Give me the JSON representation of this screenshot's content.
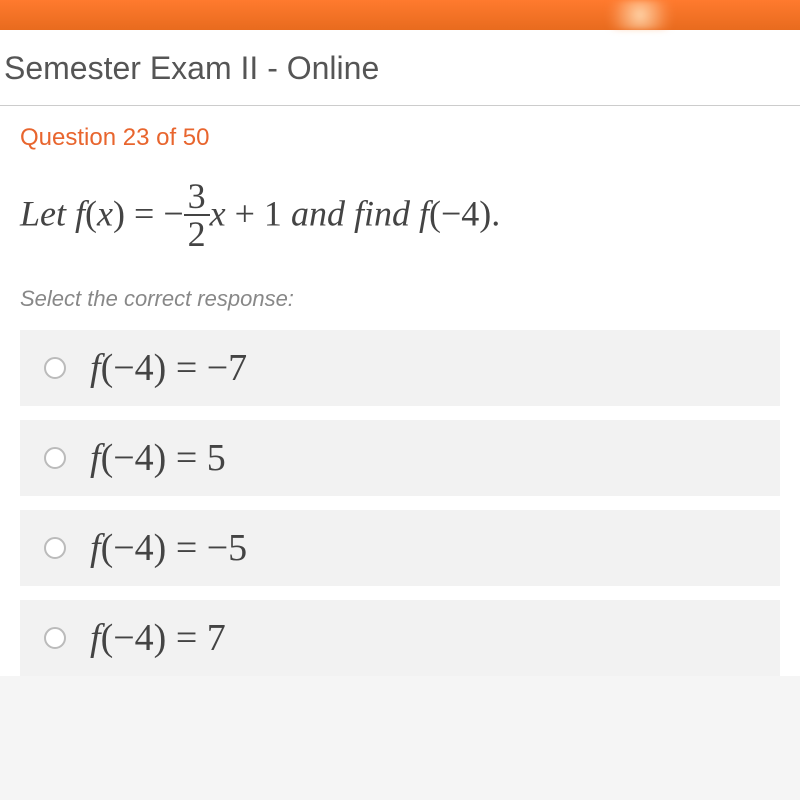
{
  "header": {
    "exam_title": "Semester Exam II - Online"
  },
  "question": {
    "counter": "Question 23 of 50",
    "problem_prefix": "Let ",
    "func_letter": "f",
    "func_var": "x",
    "eq_sign": " = ",
    "neg_sign": "−",
    "fraction": {
      "numerator": "3",
      "denominator": "2"
    },
    "term_var": "x",
    "plus_one": " + 1",
    "and_find": " and find ",
    "find_func": "f",
    "find_arg": "−4",
    "period": ".",
    "instruction": "Select the correct response:",
    "options": [
      {
        "lhs_f": "f",
        "lhs_arg": "−4",
        "eq": " = ",
        "rhs": "−7"
      },
      {
        "lhs_f": "f",
        "lhs_arg": "−4",
        "eq": " = ",
        "rhs": "5"
      },
      {
        "lhs_f": "f",
        "lhs_arg": "−4",
        "eq": " = ",
        "rhs": "−5"
      },
      {
        "lhs_f": "f",
        "lhs_arg": "−4",
        "eq": " = ",
        "rhs": "7"
      }
    ]
  },
  "styling": {
    "accent_color": "#e8652e",
    "top_bar_color": "#ff7a2e",
    "text_color": "#444",
    "muted_text": "#888",
    "option_bg": "#f2f2f2",
    "body_bg": "#fff",
    "title_fontsize": 32,
    "problem_fontsize": 36,
    "option_fontsize": 38,
    "instruction_fontsize": 22,
    "counter_fontsize": 24
  }
}
